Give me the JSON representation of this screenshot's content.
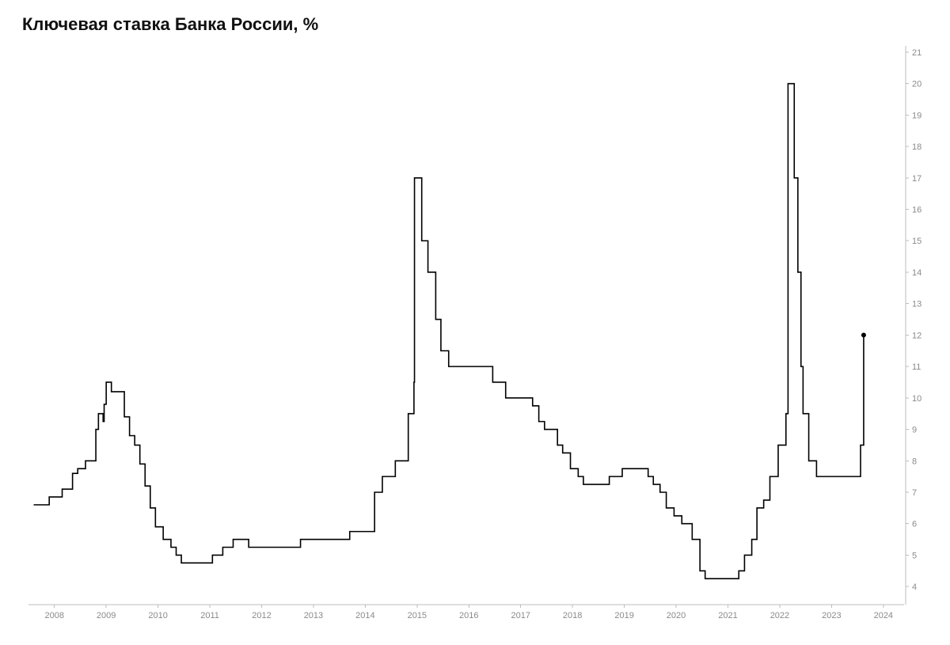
{
  "chart": {
    "type": "line-step",
    "title": "Ключевая ставка Банка России, %",
    "title_fontsize": 22,
    "title_fontweight": 700,
    "title_color": "#111111",
    "background_color": "#ffffff",
    "axis_line_color": "#bdbdbd",
    "axis_label_color": "#8a8a8a",
    "axis_label_fontsize": 11,
    "line_color": "#000000",
    "line_width": 1.6,
    "end_marker_color": "#000000",
    "end_marker_radius": 3,
    "x_axis": {
      "min": 2007.5,
      "max": 2024.4,
      "ticks": [
        2008,
        2009,
        2010,
        2011,
        2012,
        2013,
        2014,
        2015,
        2016,
        2017,
        2018,
        2019,
        2020,
        2021,
        2022,
        2023,
        2024
      ]
    },
    "y_axis": {
      "min": 3.5,
      "max": 21.2,
      "ticks": [
        4,
        5,
        6,
        7,
        8,
        9,
        10,
        11,
        12,
        13,
        14,
        15,
        16,
        17,
        18,
        19,
        20,
        21
      ]
    },
    "series": [
      {
        "x": 2007.6,
        "y": 6.6
      },
      {
        "x": 2007.85,
        "y": 6.6
      },
      {
        "x": 2007.9,
        "y": 6.85
      },
      {
        "x": 2008.1,
        "y": 6.85
      },
      {
        "x": 2008.15,
        "y": 7.1
      },
      {
        "x": 2008.3,
        "y": 7.1
      },
      {
        "x": 2008.35,
        "y": 7.6
      },
      {
        "x": 2008.4,
        "y": 7.6
      },
      {
        "x": 2008.45,
        "y": 7.75
      },
      {
        "x": 2008.55,
        "y": 7.75
      },
      {
        "x": 2008.6,
        "y": 8.0
      },
      {
        "x": 2008.75,
        "y": 8.0
      },
      {
        "x": 2008.8,
        "y": 9.0
      },
      {
        "x": 2008.85,
        "y": 9.5
      },
      {
        "x": 2008.92,
        "y": 9.5
      },
      {
        "x": 2008.94,
        "y": 9.25
      },
      {
        "x": 2008.96,
        "y": 9.8
      },
      {
        "x": 2009.0,
        "y": 10.5
      },
      {
        "x": 2009.05,
        "y": 10.5
      },
      {
        "x": 2009.1,
        "y": 10.2
      },
      {
        "x": 2009.3,
        "y": 10.2
      },
      {
        "x": 2009.35,
        "y": 9.4
      },
      {
        "x": 2009.45,
        "y": 8.8
      },
      {
        "x": 2009.55,
        "y": 8.5
      },
      {
        "x": 2009.65,
        "y": 7.9
      },
      {
        "x": 2009.75,
        "y": 7.2
      },
      {
        "x": 2009.85,
        "y": 6.5
      },
      {
        "x": 2009.95,
        "y": 5.9
      },
      {
        "x": 2010.1,
        "y": 5.5
      },
      {
        "x": 2010.25,
        "y": 5.25
      },
      {
        "x": 2010.35,
        "y": 5.0
      },
      {
        "x": 2010.45,
        "y": 4.75
      },
      {
        "x": 2010.9,
        "y": 4.75
      },
      {
        "x": 2011.05,
        "y": 5.0
      },
      {
        "x": 2011.2,
        "y": 5.0
      },
      {
        "x": 2011.25,
        "y": 5.25
      },
      {
        "x": 2011.4,
        "y": 5.25
      },
      {
        "x": 2011.45,
        "y": 5.5
      },
      {
        "x": 2011.7,
        "y": 5.5
      },
      {
        "x": 2011.75,
        "y": 5.25
      },
      {
        "x": 2012.7,
        "y": 5.25
      },
      {
        "x": 2012.75,
        "y": 5.5
      },
      {
        "x": 2013.65,
        "y": 5.5
      },
      {
        "x": 2013.7,
        "y": 5.75
      },
      {
        "x": 2014.15,
        "y": 5.75
      },
      {
        "x": 2014.18,
        "y": 7.0
      },
      {
        "x": 2014.3,
        "y": 7.0
      },
      {
        "x": 2014.33,
        "y": 7.5
      },
      {
        "x": 2014.55,
        "y": 7.5
      },
      {
        "x": 2014.58,
        "y": 8.0
      },
      {
        "x": 2014.8,
        "y": 8.0
      },
      {
        "x": 2014.83,
        "y": 9.5
      },
      {
        "x": 2014.93,
        "y": 9.5
      },
      {
        "x": 2014.94,
        "y": 10.5
      },
      {
        "x": 2014.95,
        "y": 17.0
      },
      {
        "x": 2015.08,
        "y": 17.0
      },
      {
        "x": 2015.09,
        "y": 15.0
      },
      {
        "x": 2015.2,
        "y": 15.0
      },
      {
        "x": 2015.21,
        "y": 14.0
      },
      {
        "x": 2015.35,
        "y": 14.0
      },
      {
        "x": 2015.36,
        "y": 12.5
      },
      {
        "x": 2015.45,
        "y": 12.5
      },
      {
        "x": 2015.46,
        "y": 11.5
      },
      {
        "x": 2015.6,
        "y": 11.5
      },
      {
        "x": 2015.61,
        "y": 11.0
      },
      {
        "x": 2016.45,
        "y": 11.0
      },
      {
        "x": 2016.46,
        "y": 10.5
      },
      {
        "x": 2016.7,
        "y": 10.5
      },
      {
        "x": 2016.71,
        "y": 10.0
      },
      {
        "x": 2017.2,
        "y": 10.0
      },
      {
        "x": 2017.23,
        "y": 9.75
      },
      {
        "x": 2017.33,
        "y": 9.75
      },
      {
        "x": 2017.35,
        "y": 9.25
      },
      {
        "x": 2017.45,
        "y": 9.25
      },
      {
        "x": 2017.46,
        "y": 9.0
      },
      {
        "x": 2017.7,
        "y": 9.0
      },
      {
        "x": 2017.71,
        "y": 8.5
      },
      {
        "x": 2017.8,
        "y": 8.5
      },
      {
        "x": 2017.81,
        "y": 8.25
      },
      {
        "x": 2017.95,
        "y": 8.25
      },
      {
        "x": 2017.96,
        "y": 7.75
      },
      {
        "x": 2018.1,
        "y": 7.75
      },
      {
        "x": 2018.11,
        "y": 7.5
      },
      {
        "x": 2018.2,
        "y": 7.5
      },
      {
        "x": 2018.21,
        "y": 7.25
      },
      {
        "x": 2018.7,
        "y": 7.25
      },
      {
        "x": 2018.71,
        "y": 7.5
      },
      {
        "x": 2018.95,
        "y": 7.5
      },
      {
        "x": 2018.96,
        "y": 7.75
      },
      {
        "x": 2019.45,
        "y": 7.75
      },
      {
        "x": 2019.46,
        "y": 7.5
      },
      {
        "x": 2019.55,
        "y": 7.5
      },
      {
        "x": 2019.56,
        "y": 7.25
      },
      {
        "x": 2019.68,
        "y": 7.25
      },
      {
        "x": 2019.69,
        "y": 7.0
      },
      {
        "x": 2019.8,
        "y": 7.0
      },
      {
        "x": 2019.81,
        "y": 6.5
      },
      {
        "x": 2019.95,
        "y": 6.5
      },
      {
        "x": 2019.96,
        "y": 6.25
      },
      {
        "x": 2020.1,
        "y": 6.25
      },
      {
        "x": 2020.11,
        "y": 6.0
      },
      {
        "x": 2020.3,
        "y": 6.0
      },
      {
        "x": 2020.31,
        "y": 5.5
      },
      {
        "x": 2020.45,
        "y": 5.5
      },
      {
        "x": 2020.46,
        "y": 4.5
      },
      {
        "x": 2020.55,
        "y": 4.5
      },
      {
        "x": 2020.56,
        "y": 4.25
      },
      {
        "x": 2021.2,
        "y": 4.25
      },
      {
        "x": 2021.21,
        "y": 4.5
      },
      {
        "x": 2021.31,
        "y": 4.5
      },
      {
        "x": 2021.32,
        "y": 5.0
      },
      {
        "x": 2021.45,
        "y": 5.0
      },
      {
        "x": 2021.46,
        "y": 5.5
      },
      {
        "x": 2021.55,
        "y": 5.5
      },
      {
        "x": 2021.56,
        "y": 6.5
      },
      {
        "x": 2021.68,
        "y": 6.5
      },
      {
        "x": 2021.69,
        "y": 6.75
      },
      {
        "x": 2021.8,
        "y": 6.75
      },
      {
        "x": 2021.81,
        "y": 7.5
      },
      {
        "x": 2021.96,
        "y": 7.5
      },
      {
        "x": 2021.97,
        "y": 8.5
      },
      {
        "x": 2022.11,
        "y": 8.5
      },
      {
        "x": 2022.12,
        "y": 9.5
      },
      {
        "x": 2022.15,
        "y": 9.5
      },
      {
        "x": 2022.16,
        "y": 20.0
      },
      {
        "x": 2022.27,
        "y": 20.0
      },
      {
        "x": 2022.28,
        "y": 17.0
      },
      {
        "x": 2022.34,
        "y": 17.0
      },
      {
        "x": 2022.35,
        "y": 14.0
      },
      {
        "x": 2022.4,
        "y": 14.0
      },
      {
        "x": 2022.41,
        "y": 11.0
      },
      {
        "x": 2022.44,
        "y": 11.0
      },
      {
        "x": 2022.45,
        "y": 9.5
      },
      {
        "x": 2022.55,
        "y": 9.5
      },
      {
        "x": 2022.56,
        "y": 8.0
      },
      {
        "x": 2022.7,
        "y": 8.0
      },
      {
        "x": 2022.71,
        "y": 7.5
      },
      {
        "x": 2023.55,
        "y": 7.5
      },
      {
        "x": 2023.56,
        "y": 8.5
      },
      {
        "x": 2023.61,
        "y": 8.5
      },
      {
        "x": 2023.62,
        "y": 12.0
      }
    ]
  }
}
